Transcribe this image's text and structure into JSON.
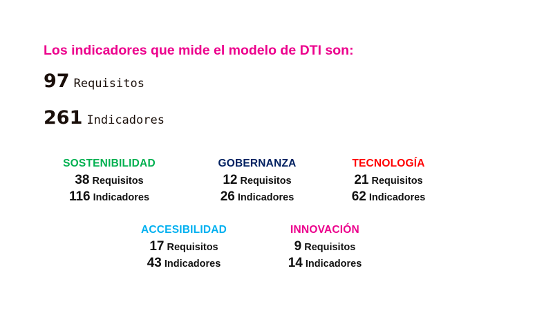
{
  "title": "Los indicadores que mide el modelo de DTI son:",
  "totals": [
    {
      "value": "97",
      "label": "Requisitos"
    },
    {
      "value": "261",
      "label": "Indicadores"
    }
  ],
  "categories": [
    {
      "name": "SOSTENIBILIDAD",
      "color": "#00b050",
      "requisitos": "38",
      "indicadores": "116",
      "req_label": "Requisitos",
      "ind_label": "Indicadores"
    },
    {
      "name": "GOBERNANZA",
      "color": "#002060",
      "requisitos": "12",
      "indicadores": "26",
      "req_label": "Requisitos",
      "ind_label": "Indicadores"
    },
    {
      "name": "TECNOLOGÍA",
      "color": "#ff0000",
      "requisitos": "21",
      "indicadores": "62",
      "req_label": "Requisitos",
      "ind_label": "Indicadores"
    },
    {
      "name": "ACCESIBILIDAD",
      "color": "#00b0f0",
      "requisitos": "17",
      "indicadores": "43",
      "req_label": "Requisitos",
      "ind_label": "Indicadores"
    },
    {
      "name": "INNOVACIÓN",
      "color": "#ec008c",
      "requisitos": "9",
      "indicadores": "14",
      "req_label": "Requisitos",
      "ind_label": "Indicadores"
    }
  ]
}
